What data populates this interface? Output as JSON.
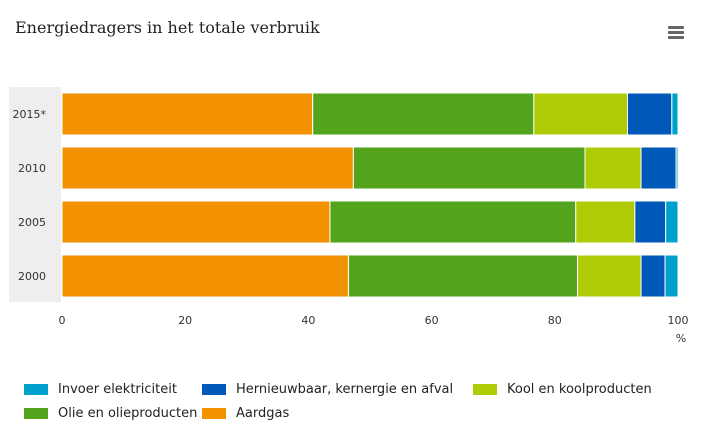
{
  "header": {
    "title": "Energiedragers in het totale verbruik",
    "menu_icon": "hamburger-menu-icon"
  },
  "chart_data": {
    "type": "bar",
    "orientation": "horizontal",
    "stacked": true,
    "title": "Energiedragers in het totale verbruik",
    "xlabel": "%",
    "ylabel": "",
    "xlim": [
      0,
      100
    ],
    "x_ticks": [
      "0",
      "20",
      "40",
      "60",
      "80",
      "100"
    ],
    "categories": [
      "2015*",
      "2010",
      "2005",
      "2000"
    ],
    "legend_position": "bottom",
    "grid": false,
    "series": [
      {
        "name": "Aardgas",
        "color": "#f39200",
        "values": [
          40.7,
          47.3,
          43.5,
          46.5
        ]
      },
      {
        "name": "Olie en olieproducten",
        "color": "#53a31d",
        "values": [
          35.9,
          37.6,
          39.9,
          37.2
        ]
      },
      {
        "name": "Kool en koolproducten",
        "color": "#afcb05",
        "values": [
          15.2,
          9.1,
          9.6,
          10.3
        ]
      },
      {
        "name": "Hernieuwbaar, kernergie en afval",
        "color": "#0058b8",
        "values": [
          7.2,
          5.7,
          5.0,
          3.9
        ]
      },
      {
        "name": "Invoer elektriciteit",
        "color": "#00a1cd",
        "values": [
          1.0,
          0.3,
          2.0,
          2.1
        ]
      }
    ]
  },
  "legend": [
    {
      "label": "Invoer elektriciteit",
      "color": "#00a1cd"
    },
    {
      "label": "Hernieuwbaar, kernergie en afval",
      "color": "#0058b8"
    },
    {
      "label": "Kool en koolproducten",
      "color": "#afcb05"
    },
    {
      "label": "Olie en olieproducten",
      "color": "#53a31d"
    },
    {
      "label": "Aardgas",
      "color": "#f39200"
    }
  ]
}
